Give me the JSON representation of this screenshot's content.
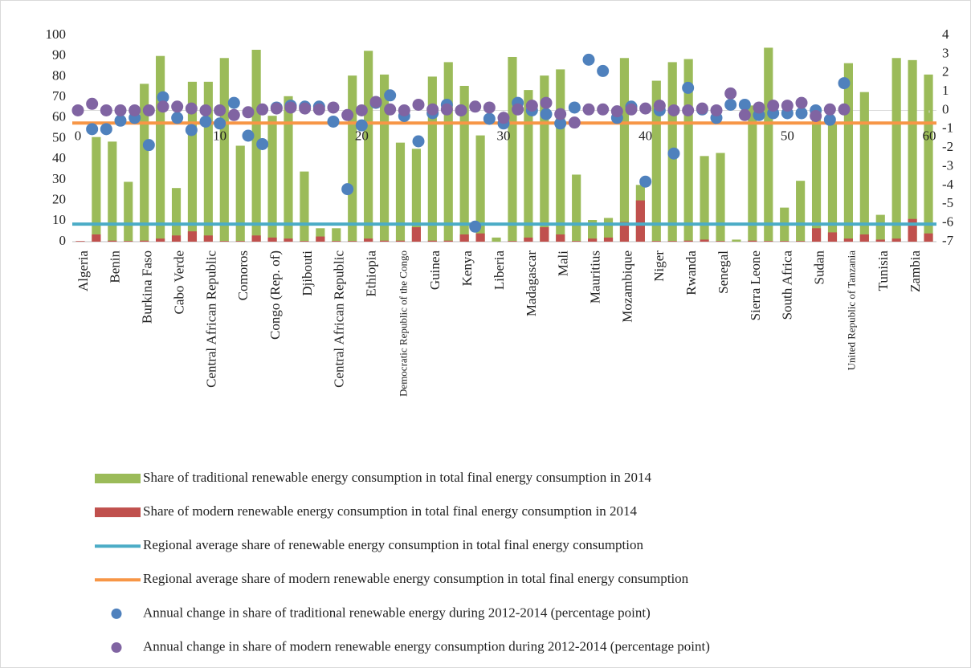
{
  "chart_data": {
    "type": "combo",
    "categories": [
      "Algeria",
      null,
      "Benin",
      null,
      "Burkina Faso",
      null,
      "Cabo Verde",
      null,
      "Central African Republic",
      null,
      "Comoros",
      null,
      "Congo (Rep. of)",
      null,
      "Djibouti",
      null,
      "Central African Republic",
      null,
      "Ethiopia",
      null,
      "Democratic Republic of the Congo",
      null,
      "Guinea",
      null,
      "Kenya",
      null,
      "Liberia",
      null,
      "Madagascar",
      null,
      "Mali",
      null,
      "Mauritius",
      null,
      "Mozambique",
      null,
      "Niger",
      null,
      "Rwanda",
      null,
      "Senegal",
      null,
      "Sierra Leone",
      null,
      "South Africa",
      null,
      "Sudan",
      null,
      "United Republic of Tanzania",
      null,
      "Tunisia",
      null,
      "Zambia",
      null
    ],
    "ylim": [
      0,
      100
    ],
    "yticks": [
      0,
      10,
      20,
      30,
      40,
      50,
      60,
      70,
      80,
      90,
      100
    ],
    "y2lim": [
      -7,
      4
    ],
    "y2ticks": [
      -7,
      -6,
      -5,
      -4,
      -3,
      -2,
      -1,
      0,
      1,
      2,
      3,
      4
    ],
    "xlim": [
      0,
      60
    ],
    "xticks": [
      0,
      10,
      20,
      30,
      40,
      50,
      60
    ],
    "series": [
      {
        "name": "Share of traditional renewable energy consumption in total final energy consumption in 2014",
        "type": "bar",
        "color": "#9bbb59",
        "values": [
          0,
          50.7,
          48.5,
          29,
          76.5,
          90,
          26,
          77.5,
          77.5,
          89,
          46.5,
          93,
          61,
          70.5,
          34,
          6.5,
          6.5,
          80.5,
          92.5,
          81,
          48,
          45,
          80,
          87,
          75.5,
          51.5,
          2,
          89.5,
          73.5,
          80.5,
          83.5,
          32.5,
          10.5,
          11.5,
          89,
          27.5,
          78,
          87,
          88.5,
          41.5,
          43,
          1,
          66,
          94,
          16.5,
          29.5,
          62,
          57,
          86.5,
          72.5,
          13,
          89,
          88,
          81
        ]
      },
      {
        "name": "Share of modern renewable energy consumption in total final energy consumption in 2014",
        "type": "bar",
        "color": "#c0504d",
        "values": [
          0.3,
          3.5,
          0.5,
          0.3,
          0.5,
          1.5,
          3,
          5,
          3,
          0.3,
          0.3,
          3,
          2,
          1.5,
          0.3,
          2.5,
          0.3,
          0.3,
          1.5,
          0.5,
          0.5,
          7,
          0.5,
          0.5,
          3.5,
          4,
          0,
          0.3,
          2,
          7,
          3.5,
          0.3,
          1.5,
          2,
          9.5,
          20,
          0.3,
          0.3,
          0.5,
          1,
          0.3,
          0,
          0.5,
          0.3,
          0.3,
          0.3,
          6.5,
          4.5,
          1.5,
          3.5,
          1,
          1.5,
          11,
          4
        ]
      },
      {
        "name": "Regional average share of renewable energy consumption in total final energy consumption",
        "type": "hline",
        "color": "#4bacc6",
        "value": 8.5
      },
      {
        "name": "Regional average share of modern renewable energy consumption in total final energy consumption",
        "type": "hline",
        "color": "#f79646",
        "value": 57.5
      },
      {
        "name": "Annual change in share of traditional renewable energy during 2012-2014 (percentage point)",
        "type": "scatter",
        "axis": "y2",
        "color": "#4f81bd",
        "x": [
          1,
          2,
          3,
          4,
          5,
          6,
          7,
          8,
          9,
          10,
          11,
          12,
          13,
          14,
          15,
          16,
          17,
          18,
          19,
          20,
          21,
          22,
          23,
          24,
          25,
          26,
          27,
          28,
          29,
          30,
          31,
          32,
          33,
          34,
          35,
          36,
          37,
          38,
          39,
          40,
          41,
          42,
          43,
          44,
          45,
          46,
          47,
          48,
          49,
          50,
          51,
          52,
          53,
          54
        ],
        "values": [
          -1.0,
          -1.0,
          -0.55,
          -0.4,
          -1.85,
          0.7,
          -0.4,
          -1.05,
          -0.6,
          -0.7,
          0.4,
          -1.35,
          -1.8,
          0.15,
          0.25,
          0.2,
          0.2,
          -0.6,
          -4.2,
          -0.8,
          0.4,
          0.8,
          -0.3,
          -1.65,
          -0.15,
          0.3,
          0,
          -6.2,
          -0.45,
          -0.7,
          0.4,
          0,
          -0.2,
          -0.7,
          0.15,
          2.7,
          2.1,
          -0.4,
          0.2,
          -3.8,
          0,
          -2.3,
          1.2,
          0.05,
          -0.4,
          0.3,
          0.3,
          -0.25,
          -0.15,
          -0.15,
          -0.15,
          0,
          -0.5,
          1.45
        ]
      },
      {
        "name": "Annual change in share of modern renewable energy consumption during 2012-2014 (percentage point)",
        "type": "scatter",
        "axis": "y2",
        "color": "#8064a2",
        "x": [
          0,
          1,
          2,
          3,
          4,
          5,
          6,
          7,
          8,
          9,
          10,
          11,
          12,
          13,
          14,
          15,
          16,
          17,
          18,
          19,
          20,
          21,
          22,
          23,
          24,
          25,
          26,
          27,
          28,
          29,
          30,
          31,
          32,
          33,
          34,
          35,
          36,
          37,
          38,
          39,
          40,
          41,
          42,
          43,
          44,
          45,
          46,
          47,
          48,
          49,
          50,
          51,
          52,
          53,
          54
        ],
        "values": [
          0,
          0.35,
          0,
          0,
          0,
          0,
          0.2,
          0.2,
          0.1,
          0,
          0,
          -0.25,
          -0.1,
          0.05,
          0.1,
          0.15,
          0.1,
          0.05,
          0.15,
          -0.25,
          0,
          0.45,
          0.05,
          0,
          0.3,
          0.05,
          0.05,
          0,
          0.2,
          0.15,
          -0.4,
          0.05,
          0.25,
          0.4,
          -0.2,
          -0.65,
          0.05,
          0.05,
          -0.05,
          0.05,
          0.1,
          0.25,
          0,
          0,
          0.1,
          0,
          0.9,
          -0.25,
          0.15,
          0.25,
          0.25,
          0.4,
          -0.3,
          0.05,
          0.05
        ]
      }
    ]
  }
}
